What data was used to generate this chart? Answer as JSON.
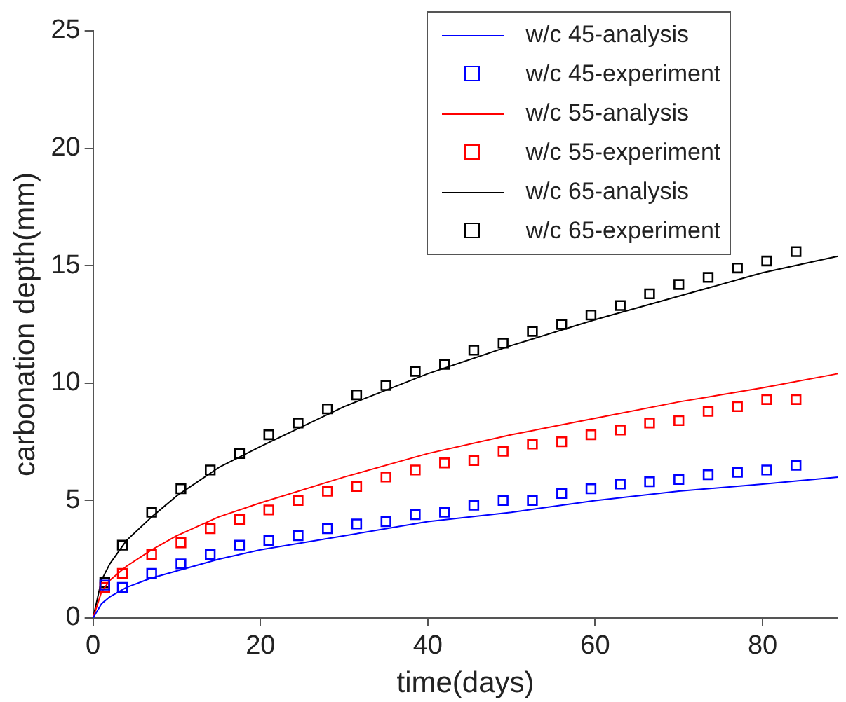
{
  "chart_data": {
    "type": "line",
    "xlabel": "time(days)",
    "ylabel": "carbonation depth(mm)",
    "xlim": [
      0,
      89
    ],
    "xticks": [
      0,
      20,
      40,
      60,
      80
    ],
    "ylim": [
      0,
      25
    ],
    "yticks": [
      0,
      5,
      10,
      15,
      20,
      25
    ],
    "grid": false,
    "legend": "top",
    "series": [
      {
        "name": "w/c 45-analysis",
        "type": "line",
        "color": "#0000ff",
        "marker": "none",
        "x": [
          0,
          1,
          2,
          4,
          7,
          10,
          15,
          20,
          30,
          40,
          50,
          60,
          70,
          80,
          89
        ],
        "values": [
          0,
          0.6,
          0.9,
          1.3,
          1.7,
          2.0,
          2.5,
          2.9,
          3.5,
          4.1,
          4.5,
          5.0,
          5.4,
          5.7,
          6.0
        ]
      },
      {
        "name": "w/c 45-experiment",
        "type": "scatter",
        "color": "#0000ff",
        "marker": "square",
        "x": [
          1.4,
          3.5,
          7,
          10.5,
          14,
          17.5,
          21,
          24.5,
          28,
          31.5,
          35,
          38.5,
          42,
          45.5,
          49,
          52.5,
          56,
          59.5,
          63,
          66.5,
          70,
          73.5,
          77,
          80.5,
          84
        ],
        "values": [
          1.4,
          1.3,
          1.9,
          2.3,
          2.7,
          3.1,
          3.3,
          3.5,
          3.8,
          4.0,
          4.1,
          4.4,
          4.5,
          4.8,
          5.0,
          5.0,
          5.3,
          5.5,
          5.7,
          5.8,
          5.9,
          6.1,
          6.2,
          6.3,
          6.5
        ]
      },
      {
        "name": "w/c 55-analysis",
        "type": "line",
        "color": "#ff0000",
        "marker": "none",
        "x": [
          0,
          1,
          2,
          4,
          7,
          10,
          15,
          20,
          30,
          40,
          50,
          60,
          70,
          80,
          89
        ],
        "values": [
          0,
          1.1,
          1.6,
          2.2,
          2.9,
          3.5,
          4.3,
          4.9,
          6.0,
          7.0,
          7.8,
          8.5,
          9.2,
          9.8,
          10.4
        ]
      },
      {
        "name": "w/c 55-experiment",
        "type": "scatter",
        "color": "#ff0000",
        "marker": "square",
        "x": [
          1.4,
          3.5,
          7,
          10.5,
          14,
          17.5,
          21,
          24.5,
          28,
          31.5,
          35,
          38.5,
          42,
          45.5,
          49,
          52.5,
          56,
          59.5,
          63,
          66.5,
          70,
          73.5,
          77,
          80.5,
          84
        ],
        "values": [
          1.3,
          1.9,
          2.7,
          3.2,
          3.8,
          4.2,
          4.6,
          5.0,
          5.4,
          5.6,
          6.0,
          6.3,
          6.6,
          6.7,
          7.1,
          7.4,
          7.5,
          7.8,
          8.0,
          8.3,
          8.4,
          8.8,
          9.0,
          9.3,
          9.3
        ]
      },
      {
        "name": "w/c 65-analysis",
        "type": "line",
        "color": "#000000",
        "marker": "none",
        "x": [
          0,
          1,
          2,
          4,
          7,
          10,
          15,
          20,
          30,
          40,
          50,
          60,
          70,
          80,
          89
        ],
        "values": [
          0,
          1.6,
          2.3,
          3.3,
          4.3,
          5.2,
          6.4,
          7.3,
          9.0,
          10.4,
          11.6,
          12.7,
          13.7,
          14.7,
          15.4
        ]
      },
      {
        "name": "w/c 65-experiment",
        "type": "scatter",
        "color": "#000000",
        "marker": "square",
        "x": [
          1.4,
          3.5,
          7,
          10.5,
          14,
          17.5,
          21,
          24.5,
          28,
          31.5,
          35,
          38.5,
          42,
          45.5,
          49,
          52.5,
          56,
          59.5,
          63,
          66.5,
          70,
          73.5,
          77,
          80.5,
          84
        ],
        "values": [
          1.5,
          3.1,
          4.5,
          5.5,
          6.3,
          7.0,
          7.8,
          8.3,
          8.9,
          9.5,
          9.9,
          10.5,
          10.8,
          11.4,
          11.7,
          12.2,
          12.5,
          12.9,
          13.3,
          13.8,
          14.2,
          14.5,
          14.9,
          15.2,
          15.6
        ]
      }
    ]
  }
}
